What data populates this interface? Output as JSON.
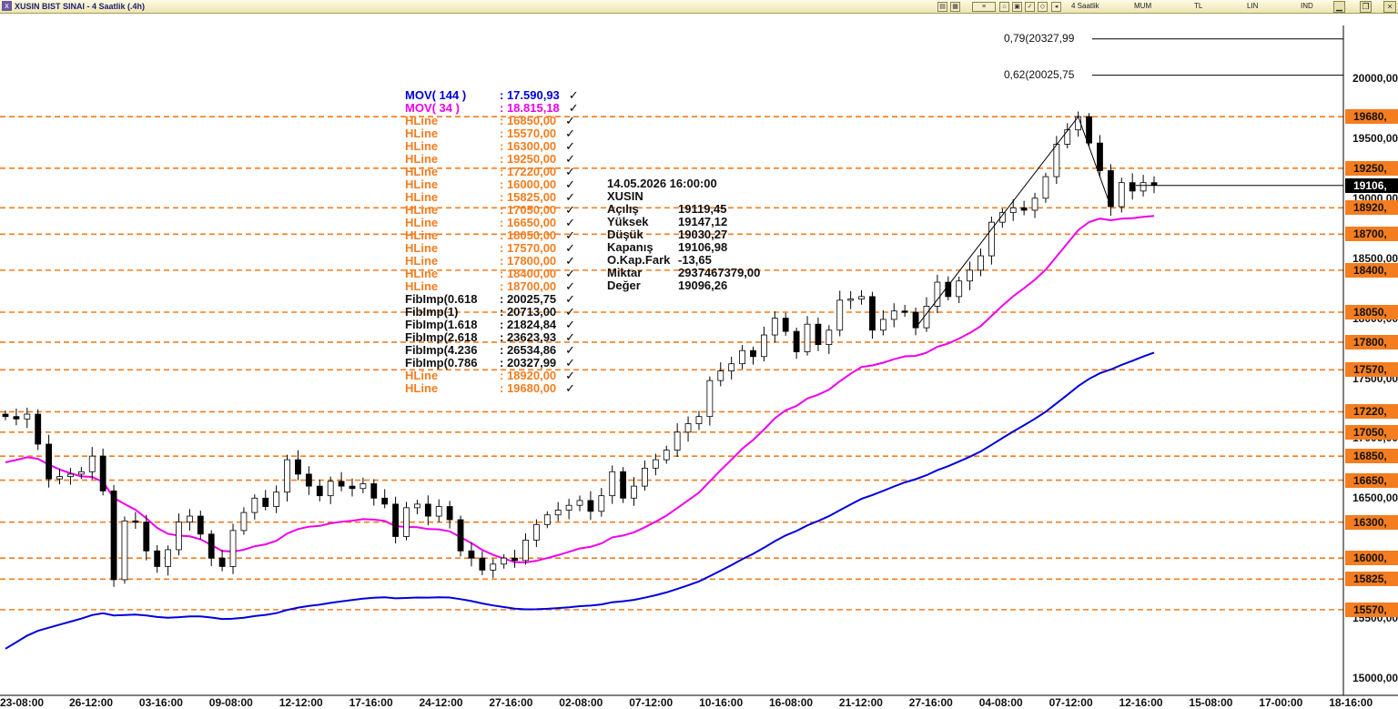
{
  "window": {
    "title": "XUSIN BIST SINAI - 4 Saatlik (.4h)",
    "toolbar": [
      "4 Saatlik",
      "MUM",
      "TL",
      "LIN",
      "IND"
    ]
  },
  "legend": [
    {
      "name": "MOV( 144 )",
      "value": ": 17.590,93",
      "color": "#0000dd"
    },
    {
      "name": "MOV( 34 )",
      "value": ": 18.815,18",
      "color": "#ee00ee"
    },
    {
      "name": "HLine",
      "value": ": 16850,00",
      "color": "#f47d1f"
    },
    {
      "name": "HLine",
      "value": ": 15570,00",
      "color": "#f47d1f"
    },
    {
      "name": "HLine",
      "value": ": 16300,00",
      "color": "#f47d1f"
    },
    {
      "name": "HLine",
      "value": ": 19250,00",
      "color": "#f47d1f"
    },
    {
      "name": "HLine",
      "value": ": 17220,00",
      "color": "#f47d1f"
    },
    {
      "name": "HLine",
      "value": ": 16000,00",
      "color": "#f47d1f"
    },
    {
      "name": "HLine",
      "value": ": 15825,00",
      "color": "#f47d1f"
    },
    {
      "name": "HLine",
      "value": ": 17050,00",
      "color": "#f47d1f"
    },
    {
      "name": "HLine",
      "value": ": 16650,00",
      "color": "#f47d1f"
    },
    {
      "name": "HLine",
      "value": ": 18050,00",
      "color": "#f47d1f"
    },
    {
      "name": "HLine",
      "value": ": 17570,00",
      "color": "#f47d1f"
    },
    {
      "name": "HLine",
      "value": ": 17800,00",
      "color": "#f47d1f"
    },
    {
      "name": "HLine",
      "value": ": 18400,00",
      "color": "#f47d1f"
    },
    {
      "name": "HLine",
      "value": ": 18700,00",
      "color": "#f47d1f"
    },
    {
      "name": "FibImp(0.618",
      "value": ": 20025,75",
      "color": "#111111"
    },
    {
      "name": "FibImp(1)",
      "value": ": 20713,00",
      "color": "#111111"
    },
    {
      "name": "FibImp(1.618",
      "value": ": 21824,84",
      "color": "#111111"
    },
    {
      "name": "FibImp(2.618",
      "value": ": 23623,93",
      "color": "#111111"
    },
    {
      "name": "FibImp(4.236",
      "value": ": 26534,86",
      "color": "#111111"
    },
    {
      "name": "FibImp(0.786",
      "value": ": 20327,99",
      "color": "#111111"
    },
    {
      "name": "HLine",
      "value": ": 18920,00",
      "color": "#f47d1f"
    },
    {
      "name": "HLine",
      "value": ": 19680,00",
      "color": "#f47d1f"
    }
  ],
  "legend_check": "✓",
  "ohlc": {
    "datetime": "14.05.2026  16:00:00",
    "symbol": "XUSIN",
    "rows": [
      {
        "k": "Açılış",
        "v": "19119,45"
      },
      {
        "k": "Yüksek",
        "v": "19147,12"
      },
      {
        "k": "Düşük",
        "v": "19030,27"
      },
      {
        "k": "Kapanış",
        "v": "19106,98"
      },
      {
        "k": "O.Kap.Fark",
        "v": "-13,65"
      },
      {
        "k": "Miktar",
        "v": "2937467379,00"
      },
      {
        "k": "Değer",
        "v": "19096,26"
      }
    ]
  },
  "fib_labels": [
    {
      "text": "0,79(20327,99",
      "price": 20327.99
    },
    {
      "text": "0,62(20025,75",
      "price": 20025.75
    }
  ],
  "price_labels": [
    {
      "text": "19680,",
      "price": 19680
    },
    {
      "text": "19250,",
      "price": 19250
    },
    {
      "text": "18920,",
      "price": 18920
    },
    {
      "text": "18700,",
      "price": 18700
    },
    {
      "text": "18400,",
      "price": 18400
    },
    {
      "text": "18050,",
      "price": 18050
    },
    {
      "text": "17800,",
      "price": 17800
    },
    {
      "text": "17570,",
      "price": 17570
    },
    {
      "text": "17220,",
      "price": 17220
    },
    {
      "text": "17050,",
      "price": 17050
    },
    {
      "text": "16850,",
      "price": 16850
    },
    {
      "text": "16650,",
      "price": 16650
    },
    {
      "text": "16300,",
      "price": 16300
    },
    {
      "text": "16000,",
      "price": 16000
    },
    {
      "text": "15825,",
      "price": 15825
    },
    {
      "text": "15570,",
      "price": 15570
    }
  ],
  "current_price": {
    "text": "19106,",
    "price": 19106.98
  },
  "chart_data": {
    "type": "candlestick",
    "title": "XUSIN BIST SINAI - 4 Saatlik (.4h)",
    "ylim": [
      14950,
      20350
    ],
    "y_ticks": [
      {
        "label": "20000,00",
        "value": 20000
      },
      {
        "label": "19500,00",
        "value": 19500
      },
      {
        "label": "19000,00",
        "value": 19000
      },
      {
        "label": "18500,00",
        "value": 18500
      },
      {
        "label": "18000,00",
        "value": 18000
      },
      {
        "label": "17500,00",
        "value": 17500
      },
      {
        "label": "17000,00",
        "value": 17000
      },
      {
        "label": "16500,00",
        "value": 16500
      },
      {
        "label": "16000,00",
        "value": 16000
      },
      {
        "label": "15500,00",
        "value": 15500
      },
      {
        "label": "15000,00",
        "value": 15000
      }
    ],
    "x_labels": [
      "23-08:00",
      "26-12:00",
      "03-16:00",
      "09-08:00",
      "12-12:00",
      "17-16:00",
      "24-12:00",
      "27-16:00",
      "02-08:00",
      "07-12:00",
      "10-16:00",
      "16-08:00",
      "21-12:00",
      "27-16:00",
      "04-08:00",
      "07-12:00",
      "12-16:00",
      "15-08:00",
      "17-00:00",
      "18-16:00"
    ],
    "hlines": [
      19680,
      19250,
      18920,
      18700,
      18400,
      18050,
      17800,
      17570,
      17220,
      17050,
      16850,
      16650,
      16300,
      16000,
      15825,
      15570
    ],
    "fib_levels": [
      20327.99,
      20025.75
    ],
    "closes": [
      17180,
      17160,
      17200,
      16950,
      16660,
      16680,
      16700,
      16720,
      16850,
      16560,
      15820,
      16310,
      16300,
      16060,
      15930,
      16070,
      16300,
      16350,
      16200,
      16000,
      15930,
      16230,
      16380,
      16500,
      16430,
      16550,
      16820,
      16700,
      16600,
      16520,
      16640,
      16600,
      16580,
      16620,
      16500,
      16450,
      16180,
      16420,
      16450,
      16350,
      16430,
      16320,
      16060,
      16000,
      15900,
      15950,
      16000,
      15980,
      16150,
      16280,
      16360,
      16400,
      16440,
      16480,
      16390,
      16520,
      16720,
      16500,
      16600,
      16750,
      16820,
      16900,
      17050,
      17120,
      17180,
      17480,
      17560,
      17620,
      17730,
      17680,
      17860,
      18000,
      17890,
      17720,
      17950,
      17780,
      17900,
      18150,
      18160,
      18180,
      17900,
      17990,
      18060,
      18050,
      17920,
      18100,
      18300,
      18180,
      18310,
      18400,
      18520,
      18800,
      18880,
      18920,
      18900,
      19000,
      19180,
      19450,
      19570,
      19680,
      19460,
      19230,
      18930,
      19130,
      19060,
      19130,
      19110
    ],
    "series": [
      {
        "name": "MOV( 144 )",
        "color": "#0000dd",
        "last": 17590.93
      },
      {
        "name": "MOV( 34 )",
        "color": "#ee00ee",
        "last": 18815.18
      }
    ]
  }
}
